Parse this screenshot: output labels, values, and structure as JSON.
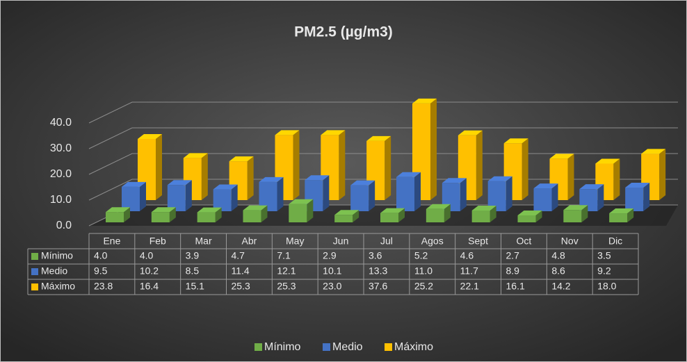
{
  "chart_data": {
    "type": "bar3d",
    "title": "PM2.5 (µg/m3)",
    "categories": [
      "Ene",
      "Feb",
      "Mar",
      "Abr",
      "May",
      "Jun",
      "Jul",
      "Agos",
      "Sept",
      "Oct",
      "Nov",
      "Dic"
    ],
    "series": [
      {
        "name": "Mínimo",
        "color": "#70ad47",
        "values": [
          4.0,
          4.0,
          3.9,
          4.7,
          7.1,
          2.9,
          3.6,
          5.2,
          4.6,
          2.7,
          4.8,
          3.5
        ],
        "value_labels": [
          "4.0",
          "4.0",
          "3.9",
          "4.7",
          "7.1",
          "2.9",
          "3.6",
          "5.2",
          "4.6",
          "2.7",
          "4.8",
          "3.5"
        ]
      },
      {
        "name": "Medio",
        "color": "#4472c4",
        "values": [
          9.5,
          10.2,
          8.5,
          11.4,
          12.1,
          10.1,
          13.3,
          11.0,
          11.7,
          8.9,
          8.6,
          9.2
        ],
        "value_labels": [
          "9.5",
          "10.2",
          "8.5",
          "11.4",
          "12.1",
          "10.1",
          "13.3",
          "11.0",
          "11.7",
          "8.9",
          "8.6",
          "9.2"
        ]
      },
      {
        "name": "Máximo",
        "color": "#ffc000",
        "values": [
          23.8,
          16.4,
          15.1,
          25.3,
          25.3,
          23.0,
          37.6,
          25.2,
          22.1,
          16.1,
          14.2,
          18.0
        ],
        "value_labels": [
          "23.8",
          "16.4",
          "15.1",
          "25.3",
          "25.3",
          "23.0",
          "37.6",
          "25.2",
          "22.1",
          "16.1",
          "14.2",
          "18.0"
        ]
      }
    ],
    "ylim": [
      0,
      40
    ],
    "yticks": [
      {
        "value": 0,
        "label": "0.0"
      },
      {
        "value": 10,
        "label": "10.0"
      },
      {
        "value": 20,
        "label": "20.0"
      },
      {
        "value": 30,
        "label": "30.0"
      },
      {
        "value": 40,
        "label": "40.0"
      }
    ],
    "grid": true,
    "legend": "bottom"
  }
}
